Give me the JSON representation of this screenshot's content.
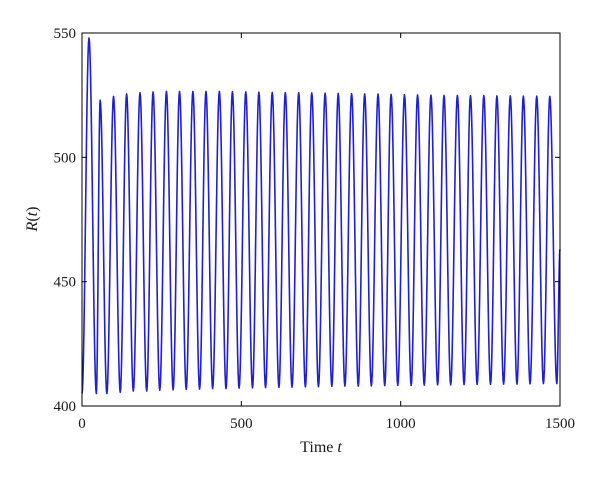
{
  "chart_data": {
    "type": "line",
    "title": "",
    "xlabel": {
      "text": "Time ",
      "var": "t"
    },
    "ylabel": {
      "var": "R",
      "open": "(",
      "arg": "t",
      "close": ")"
    },
    "xlim": [
      0,
      1500
    ],
    "ylim": [
      400,
      550
    ],
    "xticks": [
      0,
      500,
      1000,
      1500
    ],
    "yticks": [
      400,
      450,
      500,
      550
    ],
    "grid": false,
    "legend": "none",
    "line_color": "#1f1fd6",
    "series": [
      {
        "name": "",
        "oscillation": {
          "initial": {
            "t": 0,
            "R": 405
          },
          "initial_peak": {
            "t": 22,
            "R": 548
          },
          "first_trough": {
            "t": 45,
            "R": 405
          },
          "period": 41.5,
          "peak_amplitude_start": 523,
          "peak_amplitude_max": 526.5,
          "peak_amplitude_end": 524.5,
          "trough_start": 405,
          "trough_end": 409,
          "end": {
            "t": 1500,
            "R": 463
          }
        },
        "peaks_t": [
          22,
          57,
          99,
          140,
          182,
          223,
          265,
          306,
          348,
          389,
          431,
          472,
          514,
          555,
          597,
          638,
          680,
          721,
          763,
          804,
          846,
          887,
          929,
          970,
          1012,
          1053,
          1095,
          1136,
          1178,
          1219,
          1261,
          1302,
          1344,
          1385,
          1427,
          1468
        ],
        "peaks_R": [
          548,
          523,
          524.5,
          525.5,
          526,
          526.3,
          526.5,
          526.5,
          526.5,
          526.5,
          526.5,
          526.4,
          526.3,
          526.2,
          526.1,
          526,
          526,
          525.9,
          525.8,
          525.7,
          525.6,
          525.5,
          525.4,
          525.3,
          525.2,
          525.1,
          525,
          524.9,
          524.9,
          524.8,
          524.8,
          524.7,
          524.7,
          524.6,
          524.6,
          524.5
        ],
        "troughs_t": [
          45,
          78,
          120,
          161,
          203,
          244,
          286,
          327,
          369,
          410,
          452,
          493,
          535,
          576,
          618,
          659,
          701,
          742,
          784,
          825,
          867,
          908,
          950,
          991,
          1033,
          1074,
          1116,
          1157,
          1199,
          1240,
          1282,
          1323,
          1365,
          1406,
          1448,
          1490
        ],
        "troughs_R": [
          405,
          405,
          405.5,
          406,
          406,
          406.3,
          406.5,
          406.7,
          406.8,
          407,
          407,
          407.2,
          407.3,
          407.4,
          407.5,
          407.6,
          407.7,
          407.8,
          407.9,
          408,
          408,
          408.1,
          408.2,
          408.3,
          408.3,
          408.4,
          408.5,
          408.5,
          408.6,
          408.7,
          408.7,
          408.8,
          408.8,
          408.9,
          409,
          409
        ]
      }
    ]
  }
}
